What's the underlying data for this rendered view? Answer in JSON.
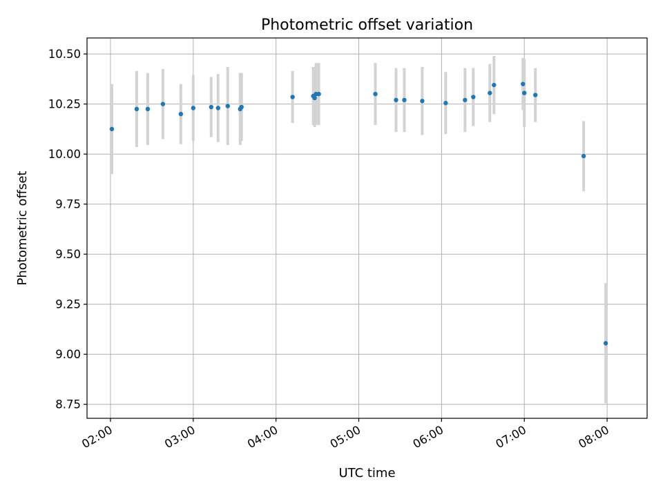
{
  "chart_data": {
    "type": "scatter",
    "title": "Photometric offset variation",
    "xlabel": "UTC time",
    "ylabel": "Photometric offset",
    "x_unit": "UTC hh:mm",
    "xlim": [
      "01:43",
      "08:29"
    ],
    "ylim": [
      8.68,
      10.58
    ],
    "x_ticks": [
      "02:00",
      "03:00",
      "04:00",
      "05:00",
      "06:00",
      "07:00",
      "08:00"
    ],
    "y_ticks": [
      "8.75",
      "9.00",
      "9.25",
      "9.50",
      "9.75",
      "10.00",
      "10.25",
      "10.50"
    ],
    "grid": true,
    "legend": "none",
    "colors": {
      "point": "#1f77b4",
      "error_bar": "#d3d3d3",
      "grid": "#b0b0b0"
    },
    "points": [
      {
        "t": "02:01",
        "y": 10.125,
        "err": 0.225
      },
      {
        "t": "02:19",
        "y": 10.225,
        "err": 0.19
      },
      {
        "t": "02:27",
        "y": 10.225,
        "err": 0.18
      },
      {
        "t": "02:38",
        "y": 10.25,
        "err": 0.175
      },
      {
        "t": "02:51",
        "y": 10.2,
        "err": 0.15
      },
      {
        "t": "03:00",
        "y": 10.23,
        "err": 0.165
      },
      {
        "t": "03:13",
        "y": 10.235,
        "err": 0.15
      },
      {
        "t": "03:18",
        "y": 10.23,
        "err": 0.17
      },
      {
        "t": "03:25",
        "y": 10.24,
        "err": 0.195
      },
      {
        "t": "03:34",
        "y": 10.225,
        "err": 0.18
      },
      {
        "t": "03:35",
        "y": 10.235,
        "err": 0.17
      },
      {
        "t": "04:12",
        "y": 10.285,
        "err": 0.13
      },
      {
        "t": "04:27",
        "y": 10.29,
        "err": 0.145
      },
      {
        "t": "04:28",
        "y": 10.28,
        "err": 0.145
      },
      {
        "t": "04:29",
        "y": 10.3,
        "err": 0.155
      },
      {
        "t": "04:31",
        "y": 10.3,
        "err": 0.155
      },
      {
        "t": "05:12",
        "y": 10.3,
        "err": 0.155
      },
      {
        "t": "05:27",
        "y": 10.27,
        "err": 0.16
      },
      {
        "t": "05:33",
        "y": 10.27,
        "err": 0.16
      },
      {
        "t": "05:46",
        "y": 10.265,
        "err": 0.17
      },
      {
        "t": "06:03",
        "y": 10.255,
        "err": 0.155
      },
      {
        "t": "06:17",
        "y": 10.27,
        "err": 0.16
      },
      {
        "t": "06:23",
        "y": 10.285,
        "err": 0.145
      },
      {
        "t": "06:35",
        "y": 10.305,
        "err": 0.145
      },
      {
        "t": "06:38",
        "y": 10.345,
        "err": 0.145
      },
      {
        "t": "06:59",
        "y": 10.35,
        "err": 0.13
      },
      {
        "t": "07:00",
        "y": 10.305,
        "err": 0.17
      },
      {
        "t": "07:08",
        "y": 10.295,
        "err": 0.135
      },
      {
        "t": "07:43",
        "y": 9.99,
        "err": 0.175
      },
      {
        "t": "07:59",
        "y": 9.055,
        "err": 0.3
      }
    ]
  }
}
